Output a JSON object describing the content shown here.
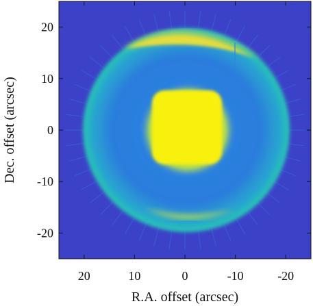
{
  "figure": {
    "xlabel": "R.A. offset (arcsec)",
    "ylabel": "Dec. offset (arcsec)",
    "x_ticks": [
      {
        "value": 20,
        "label": "20"
      },
      {
        "value": 10,
        "label": "10"
      },
      {
        "value": 0,
        "label": "0"
      },
      {
        "value": -10,
        "label": "-10"
      },
      {
        "value": -20,
        "label": "-20"
      }
    ],
    "y_ticks": [
      {
        "value": 20,
        "label": "20"
      },
      {
        "value": 10,
        "label": "10"
      },
      {
        "value": 0,
        "label": "0"
      },
      {
        "value": -10,
        "label": "-10"
      },
      {
        "value": -20,
        "label": "-20"
      }
    ],
    "xlim": [
      25,
      -25
    ],
    "ylim": [
      -25,
      25
    ],
    "colors": {
      "background": "#3c42c8",
      "halo": "#2f86e2",
      "ring": "#27c3b4",
      "arc": "#a6d65a",
      "arc_hot": "#e6dc3a",
      "core": "#f8f010"
    }
  }
}
